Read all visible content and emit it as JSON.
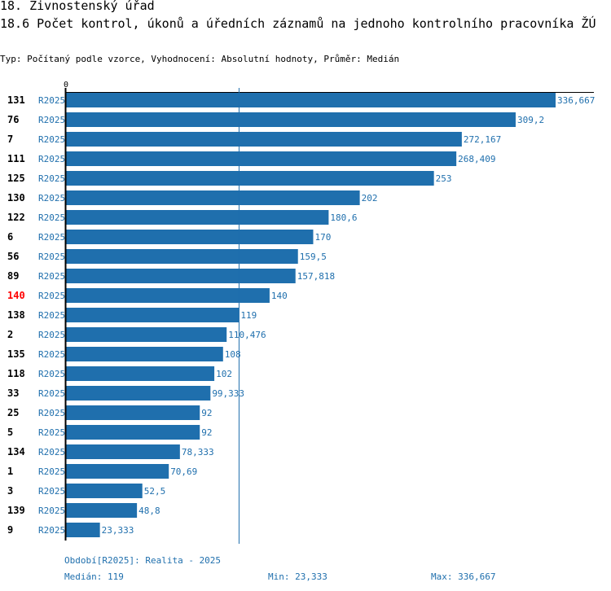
{
  "header": {
    "title": "18. Živnostenský úřad",
    "subtitle": "18.6 Počet kontrol, úkonů a úředních záznamů na jednoho kontrolního pracovníka ŽÚ",
    "info": "Typ: Počítaný podle vzorce, Vyhodnocení: Absolutní hodnoty, Průměr: Medián"
  },
  "chart_data": {
    "type": "bar",
    "orientation": "horizontal",
    "title": "18.6 Počet kontrol, úkonů a úředních záznamů na jednoho kontrolního pracovníka ŽÚ",
    "x_tick_labels": [
      "0"
    ],
    "xlim": [
      0,
      336.667
    ],
    "series_label": "R2025",
    "highlighted_category": "140",
    "median": 119,
    "bars": [
      {
        "id": "131",
        "period": "R2025",
        "value": 336.667,
        "label": "336,667"
      },
      {
        "id": "76",
        "period": "R2025",
        "value": 309.2,
        "label": "309,2"
      },
      {
        "id": "7",
        "period": "R2025",
        "value": 272.167,
        "label": "272,167"
      },
      {
        "id": "111",
        "period": "R2025",
        "value": 268.409,
        "label": "268,409"
      },
      {
        "id": "125",
        "period": "R2025",
        "value": 253,
        "label": "253"
      },
      {
        "id": "130",
        "period": "R2025",
        "value": 202,
        "label": "202"
      },
      {
        "id": "122",
        "period": "R2025",
        "value": 180.6,
        "label": "180,6"
      },
      {
        "id": "6",
        "period": "R2025",
        "value": 170,
        "label": "170"
      },
      {
        "id": "56",
        "period": "R2025",
        "value": 159.5,
        "label": "159,5"
      },
      {
        "id": "89",
        "period": "R2025",
        "value": 157.818,
        "label": "157,818"
      },
      {
        "id": "140",
        "period": "R2025",
        "value": 140,
        "label": "140"
      },
      {
        "id": "138",
        "period": "R2025",
        "value": 119,
        "label": "119"
      },
      {
        "id": "2",
        "period": "R2025",
        "value": 110.476,
        "label": "110,476"
      },
      {
        "id": "135",
        "period": "R2025",
        "value": 108,
        "label": "108"
      },
      {
        "id": "118",
        "period": "R2025",
        "value": 102,
        "label": "102"
      },
      {
        "id": "33",
        "period": "R2025",
        "value": 99.333,
        "label": "99,333"
      },
      {
        "id": "25",
        "period": "R2025",
        "value": 92,
        "label": "92"
      },
      {
        "id": "5",
        "period": "R2025",
        "value": 92,
        "label": "92"
      },
      {
        "id": "134",
        "period": "R2025",
        "value": 78.333,
        "label": "78,333"
      },
      {
        "id": "1",
        "period": "R2025",
        "value": 70.69,
        "label": "70,69"
      },
      {
        "id": "3",
        "period": "R2025",
        "value": 52.5,
        "label": "52,5"
      },
      {
        "id": "139",
        "period": "R2025",
        "value": 48.8,
        "label": "48,8"
      },
      {
        "id": "9",
        "period": "R2025",
        "value": 23.333,
        "label": "23,333"
      }
    ]
  },
  "footer": {
    "period": "Období[R2025]: Realita - 2025",
    "median": "Medián: 119",
    "min": "Min: 23,333",
    "max": "Max: 336,667"
  },
  "colors": {
    "bar": "#1f6fad",
    "label": "#1f6fad",
    "highlight": "#ff0000",
    "axis": "#000000"
  }
}
